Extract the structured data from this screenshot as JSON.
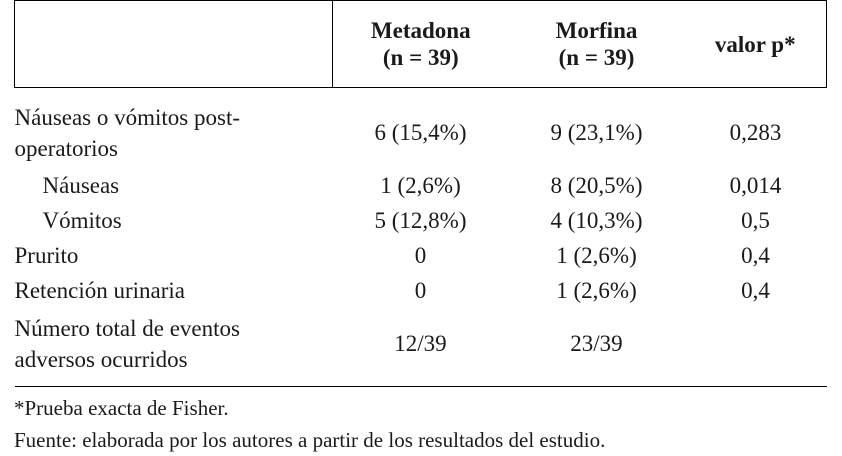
{
  "table": {
    "headers": {
      "col2": [
        "Metadona",
        "(n = 39)"
      ],
      "col3": [
        "Morfina",
        "(n = 39)"
      ],
      "col4": "valor p*"
    },
    "rows": [
      {
        "label": [
          "Náuseas o vómitos post-",
          "operatorios"
        ],
        "metadona": "6 (15,4%)",
        "morfina": "9 (23,1%)",
        "p": "0,283",
        "indent": false
      },
      {
        "label": [
          "Náuseas"
        ],
        "metadona": "1 (2,6%)",
        "morfina": "8 (20,5%)",
        "p": "0,014",
        "indent": true
      },
      {
        "label": [
          "Vómitos"
        ],
        "metadona": "5 (12,8%)",
        "morfina": "4 (10,3%)",
        "p": "0,5",
        "indent": true
      },
      {
        "label": [
          "Prurito"
        ],
        "metadona": "0",
        "morfina": "1 (2,6%)",
        "p": "0,4",
        "indent": false
      },
      {
        "label": [
          "Retención urinaria"
        ],
        "metadona": "0",
        "morfina": "1 (2,6%)",
        "p": "0,4",
        "indent": false
      },
      {
        "label": [
          "Número total de eventos",
          "adversos ocurridos"
        ],
        "metadona": "12/39",
        "morfina": "23/39",
        "p": "",
        "indent": false
      }
    ]
  },
  "notes": {
    "footnote": "*Prueba exacta de Fisher.",
    "source": "Fuente: elaborada por los autores a partir de los resultados del estudio."
  }
}
